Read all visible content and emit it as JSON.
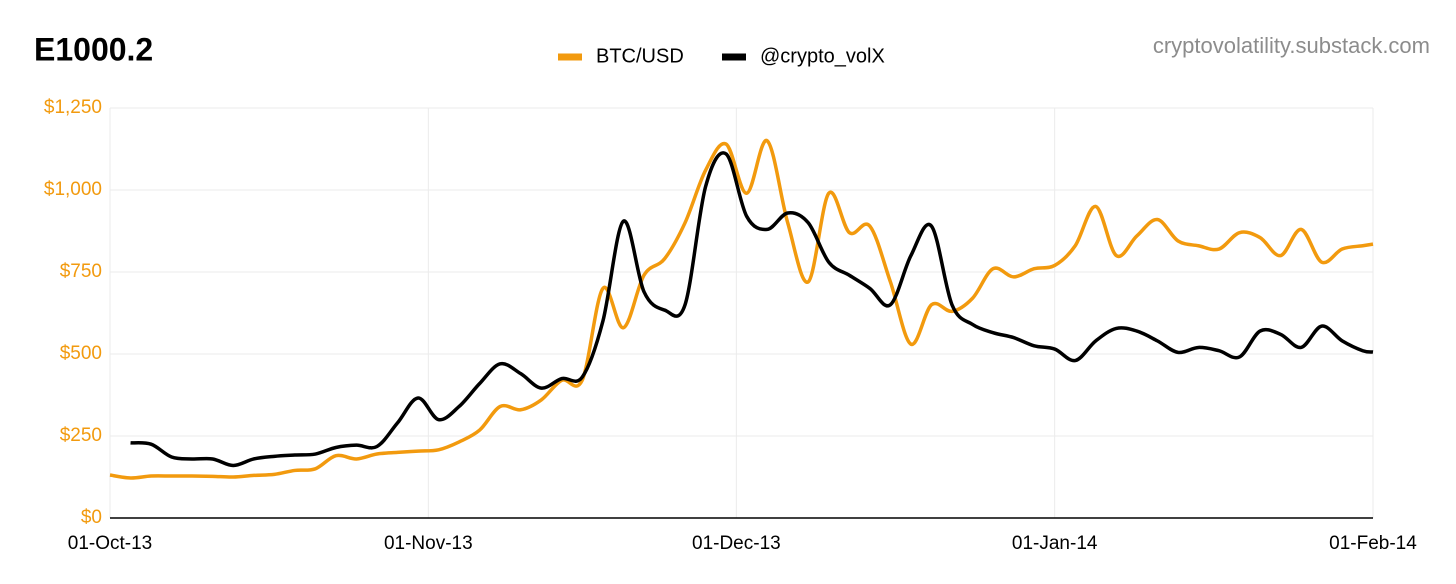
{
  "chart_data": {
    "type": "line",
    "title": "E1000.2",
    "source": "cryptovolatility.substack.com",
    "x": [
      "2013-10-01",
      "2013-10-03",
      "2013-10-05",
      "2013-10-07",
      "2013-10-09",
      "2013-10-11",
      "2013-10-13",
      "2013-10-15",
      "2013-10-17",
      "2013-10-19",
      "2013-10-21",
      "2013-10-23",
      "2013-10-25",
      "2013-10-27",
      "2013-10-29",
      "2013-10-31",
      "2013-11-02",
      "2013-11-04",
      "2013-11-06",
      "2013-11-08",
      "2013-11-10",
      "2013-11-12",
      "2013-11-14",
      "2013-11-16",
      "2013-11-18",
      "2013-11-20",
      "2013-11-22",
      "2013-11-24",
      "2013-11-26",
      "2013-11-28",
      "2013-11-30",
      "2013-12-02",
      "2013-12-04",
      "2013-12-06",
      "2013-12-08",
      "2013-12-10",
      "2013-12-12",
      "2013-12-14",
      "2013-12-16",
      "2013-12-18",
      "2013-12-20",
      "2013-12-22",
      "2013-12-24",
      "2013-12-26",
      "2013-12-28",
      "2013-12-30",
      "2014-01-01",
      "2014-01-03",
      "2014-01-05",
      "2014-01-07",
      "2014-01-09",
      "2014-01-11",
      "2014-01-13",
      "2014-01-15",
      "2014-01-17",
      "2014-01-19",
      "2014-01-21",
      "2014-01-23",
      "2014-01-25",
      "2014-01-27",
      "2014-01-29",
      "2014-01-31",
      "2014-02-01"
    ],
    "series": [
      {
        "name": "BTC/USD",
        "color": "#f29a0e",
        "values": [
          131,
          122,
          128,
          128,
          128,
          127,
          125,
          130,
          133,
          145,
          150,
          190,
          180,
          195,
          200,
          204,
          208,
          232,
          268,
          340,
          330,
          360,
          420,
          421,
          700,
          580,
          740,
          790,
          900,
          1060,
          1140,
          990,
          1150,
          900,
          720,
          990,
          870,
          890,
          720,
          530,
          650,
          630,
          670,
          760,
          735,
          760,
          770,
          830,
          950,
          800,
          860,
          910,
          845,
          830,
          820,
          870,
          855,
          800,
          880,
          780,
          820,
          830,
          835
        ]
      },
      {
        "name": "@crypto_volX",
        "color": "#000000",
        "values": [
          null,
          229,
          225,
          186,
          180,
          180,
          160,
          180,
          188,
          192,
          195,
          215,
          222,
          218,
          290,
          366,
          300,
          340,
          410,
          470,
          440,
          396,
          425,
          430,
          600,
          905,
          690,
          634,
          650,
          1010,
          1110,
          920,
          880,
          930,
          900,
          780,
          740,
          700,
          650,
          800,
          890,
          650,
          590,
          565,
          550,
          525,
          515,
          480,
          540,
          578,
          570,
          540,
          505,
          520,
          510,
          491,
          570,
          560,
          520,
          585,
          540,
          510,
          506
        ]
      }
    ],
    "xlim": [
      "2013-10-01",
      "2014-02-01"
    ],
    "xticks": [
      {
        "value": "2013-10-01",
        "label": "01-Oct-13"
      },
      {
        "value": "2013-11-01",
        "label": "01-Nov-13"
      },
      {
        "value": "2013-12-01",
        "label": "01-Dec-13"
      },
      {
        "value": "2014-01-01",
        "label": "01-Jan-14"
      },
      {
        "value": "2014-02-01",
        "label": "01-Feb-14"
      }
    ],
    "ylim": [
      0,
      1250
    ],
    "yticks": [
      {
        "value": 0,
        "label": "$0"
      },
      {
        "value": 250,
        "label": "$250"
      },
      {
        "value": 500,
        "label": "$500"
      },
      {
        "value": 750,
        "label": "$750"
      },
      {
        "value": 1000,
        "label": "$1,000"
      },
      {
        "value": 1250,
        "label": "$1,250"
      }
    ],
    "ytick_color": "#f29a0e",
    "grid": true,
    "legend": "top"
  }
}
